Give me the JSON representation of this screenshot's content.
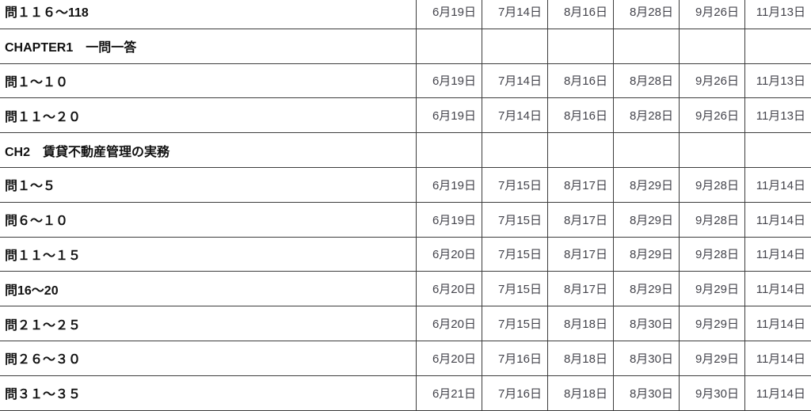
{
  "colors": {
    "background": "#ffffff",
    "grid_border": "#3c3c3c",
    "label_text": "#111111",
    "date_text": "#44444c"
  },
  "table": {
    "description": "study schedule grid: question ranges vs review dates",
    "date_column_count": 6,
    "rows": [
      {
        "type": "item",
        "label": "問１１６～118",
        "dates": [
          "6月19日",
          "7月14日",
          "8月16日",
          "8月28日",
          "9月26日",
          "11月13日"
        ]
      },
      {
        "type": "section",
        "label": "CHAPTER1　一問一答",
        "dates": [
          "",
          "",
          "",
          "",
          "",
          ""
        ]
      },
      {
        "type": "item",
        "label": "問１～１０",
        "dates": [
          "6月19日",
          "7月14日",
          "8月16日",
          "8月28日",
          "9月26日",
          "11月13日"
        ]
      },
      {
        "type": "item",
        "label": "問１１～２０",
        "dates": [
          "6月19日",
          "7月14日",
          "8月16日",
          "8月28日",
          "9月26日",
          "11月13日"
        ]
      },
      {
        "type": "section",
        "label": "CH2　賃貸不動産管理の実務",
        "dates": [
          "",
          "",
          "",
          "",
          "",
          ""
        ]
      },
      {
        "type": "item",
        "label": "問１～５",
        "dates": [
          "6月19日",
          "7月15日",
          "8月17日",
          "8月29日",
          "9月28日",
          "11月14日"
        ]
      },
      {
        "type": "item",
        "label": "問６～１０",
        "dates": [
          "6月19日",
          "7月15日",
          "8月17日",
          "8月29日",
          "9月28日",
          "11月14日"
        ]
      },
      {
        "type": "item",
        "label": "問１１～１５",
        "dates": [
          "6月20日",
          "7月15日",
          "8月17日",
          "8月29日",
          "9月28日",
          "11月14日"
        ]
      },
      {
        "type": "item",
        "label": "問16～20",
        "dates": [
          "6月20日",
          "7月15日",
          "8月17日",
          "8月29日",
          "9月29日",
          "11月14日"
        ]
      },
      {
        "type": "item",
        "label": "問２１～２５",
        "dates": [
          "6月20日",
          "7月15日",
          "8月18日",
          "8月30日",
          "9月29日",
          "11月14日"
        ]
      },
      {
        "type": "item",
        "label": "問２６～３０",
        "dates": [
          "6月20日",
          "7月16日",
          "8月18日",
          "8月30日",
          "9月29日",
          "11月14日"
        ]
      },
      {
        "type": "item",
        "label": "問３１～３５",
        "dates": [
          "6月21日",
          "7月16日",
          "8月18日",
          "8月30日",
          "9月30日",
          "11月14日"
        ]
      }
    ]
  }
}
